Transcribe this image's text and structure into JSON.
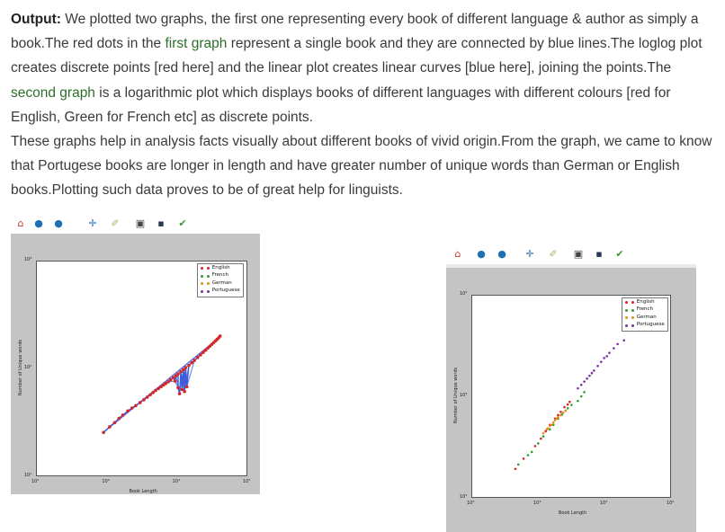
{
  "paragraph1": {
    "label": "Output:",
    "t1": " We plotted two graphs, the first one representing every book of different language & author as simply a book.The red dots in the ",
    "link1": "first graph",
    "t2": " represent a single book and they are connected by blue lines.The loglog plot creates discrete points [red here] and the linear plot creates linear curves [blue here], joining the points.The ",
    "link2": "second graph",
    "t3": " is a logarithmic plot which displays books of different languages with different colours [red for English, Green for French etc] as discrete points."
  },
  "paragraph2": "These graphs help in analysis facts visually about different books of vivid origin.From the graph, we came to know that Portugese books are longer in length and have greater number of unique words than German or English books.Plotting such data proves to be of great help for linguists.",
  "toolbar": {
    "icons": [
      "home-icon",
      "back-icon",
      "forward-icon",
      "pan-icon",
      "zoom-icon",
      "configure-icon",
      "save-icon",
      "edit-icon"
    ],
    "glyphs": [
      "⌂",
      "●",
      "●",
      "✛",
      "✐",
      "▣",
      "▪",
      "✔"
    ],
    "colors": [
      "#c0392b",
      "#1f6fb3",
      "#1f6fb3",
      "#1f6fb3",
      "#a0b86a",
      "#444444",
      "#2a3a55",
      "#3a9a3a"
    ]
  },
  "legend": {
    "entries": [
      {
        "label": "English",
        "color": "#d62728"
      },
      {
        "label": "French",
        "color": "#2ca02c"
      },
      {
        "label": "German",
        "color": "#e08a1e"
      },
      {
        "label": "Portuguese",
        "color": "#7b2fa6"
      }
    ]
  },
  "figure1": {
    "xlabel": "Book Length",
    "ylabel": "Number of Unique words",
    "xticks": [
      "10²",
      "10³",
      "10⁴",
      "10⁵"
    ],
    "yticks": [
      "10¹",
      "10²",
      "10³"
    ]
  },
  "figure2": {
    "xlabel": "Book Length",
    "ylabel": "Number of Unique words",
    "xticks": [
      "10³",
      "10⁴",
      "10⁵",
      "10⁶"
    ],
    "yticks": [
      "10²",
      "10³",
      "10⁴"
    ]
  },
  "chart_data": [
    {
      "type": "scatter",
      "title": "",
      "xlabel": "Book Length",
      "ylabel": "Number of Unique words",
      "xscale": "log",
      "yscale": "log",
      "xlim": [
        100,
        100000
      ],
      "ylim": [
        10,
        10000
      ],
      "legend_position": "top-right",
      "grid": false,
      "point_color": "#d62728",
      "line_color": "#3b5bdb",
      "series": [
        {
          "name": "English",
          "x": [
            900,
            1100,
            1300,
            1500,
            1700,
            2000,
            2300,
            2600,
            3000,
            3400,
            3800,
            4200,
            4600,
            5000,
            5500,
            6000,
            6500,
            7000,
            7600,
            8200,
            9000,
            9800,
            10500,
            11500,
            12500,
            13500,
            15000,
            16500,
            18000,
            20000,
            22000,
            24000,
            26000,
            28000,
            30000,
            32000,
            34000,
            36000,
            38000,
            40000,
            42000,
            9500,
            10500,
            11000,
            12000,
            13000,
            14000
          ],
          "y": [
            40,
            48,
            55,
            63,
            70,
            80,
            88,
            95,
            105,
            115,
            125,
            135,
            145,
            155,
            165,
            175,
            185,
            195,
            205,
            220,
            235,
            250,
            265,
            285,
            305,
            325,
            350,
            380,
            410,
            450,
            490,
            530,
            570,
            610,
            650,
            690,
            730,
            770,
            810,
            850,
            900,
            210,
            170,
            140,
            160,
            150,
            175
          ]
        }
      ]
    },
    {
      "type": "scatter",
      "title": "",
      "xlabel": "Book Length",
      "ylabel": "Number of Unique words",
      "xscale": "log",
      "yscale": "log",
      "xlim": [
        1000,
        1000000
      ],
      "ylim": [
        100,
        10000
      ],
      "legend_position": "top-right",
      "grid": false,
      "series": [
        {
          "name": "English",
          "x": [
            4500,
            6000,
            9000,
            11000,
            13000,
            15000,
            18000,
            20000,
            22000,
            25000,
            28000,
            30000
          ],
          "y": [
            190,
            240,
            320,
            380,
            450,
            520,
            600,
            650,
            700,
            780,
            830,
            880
          ]
        },
        {
          "name": "French",
          "x": [
            5000,
            7000,
            8000,
            10000,
            12000,
            15000,
            17000,
            20000,
            23000,
            28000,
            32000,
            40000,
            45000,
            50000
          ],
          "y": [
            210,
            260,
            280,
            340,
            400,
            470,
            520,
            600,
            660,
            760,
            820,
            900,
            1000,
            1100
          ]
        },
        {
          "name": "German",
          "x": [
            12000,
            13500,
            14000,
            15000,
            16000,
            17000,
            18000,
            19000,
            20000,
            22000,
            24000,
            26000
          ],
          "y": [
            430,
            470,
            480,
            510,
            520,
            550,
            580,
            600,
            620,
            650,
            690,
            720
          ]
        },
        {
          "name": "Portuguese",
          "x": [
            40000,
            45000,
            50000,
            55000,
            60000,
            65000,
            70000,
            80000,
            90000,
            100000,
            110000,
            120000,
            140000,
            160000,
            200000
          ],
          "y": [
            1200,
            1300,
            1400,
            1500,
            1600,
            1700,
            1800,
            2000,
            2200,
            2400,
            2500,
            2700,
            3000,
            3300,
            3600
          ]
        }
      ]
    }
  ]
}
